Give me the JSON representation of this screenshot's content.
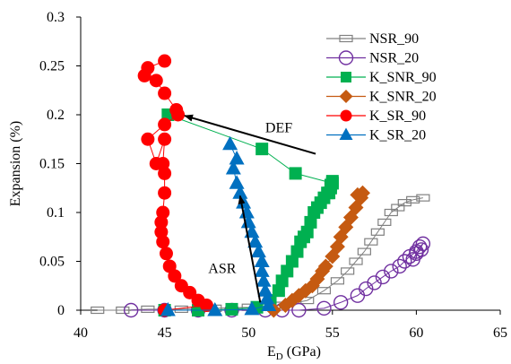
{
  "chart_data": {
    "type": "scatter",
    "xlabel": "E",
    "xlabel_sub": "D",
    "xlabel_unit": " (GPa)",
    "ylabel": "Expansion (%)",
    "xlim": [
      40,
      65
    ],
    "ylim": [
      0,
      0.3
    ],
    "x_ticks": [
      40,
      45,
      50,
      55,
      60,
      65
    ],
    "y_ticks": [
      0,
      0.05,
      0.1,
      0.15,
      0.2,
      0.25,
      0.3
    ],
    "y_tick_labels": [
      "0",
      "0.05",
      "0.1",
      "0.15",
      "0.2",
      "0.25",
      "0.3"
    ],
    "grid": false,
    "legend_position": "top-right",
    "series": [
      {
        "name": "NSR_90",
        "color": "#808080",
        "marker": "rect-open",
        "line": true,
        "x": [
          41.0,
          42.5,
          44.0,
          46.0,
          48.0,
          50.0,
          52.0,
          53.5,
          54.5,
          55.3,
          55.9,
          56.4,
          56.9,
          57.3,
          57.7,
          58.1,
          58.5,
          58.9,
          59.3,
          59.8,
          60.4
        ],
        "y": [
          0.0,
          0.0,
          0.001,
          0.001,
          0.002,
          0.003,
          0.005,
          0.01,
          0.02,
          0.03,
          0.04,
          0.05,
          0.06,
          0.07,
          0.08,
          0.09,
          0.1,
          0.105,
          0.11,
          0.113,
          0.115
        ]
      },
      {
        "name": "NSR_20",
        "color": "#7030A0",
        "marker": "circle-open",
        "line": true,
        "x": [
          43.0,
          45.0,
          47.0,
          49.0,
          51.0,
          52.0,
          53.0,
          54.5,
          55.5,
          56.5,
          57.0,
          57.5,
          58.0,
          58.5,
          59.0,
          59.3,
          59.6,
          60.0,
          60.2,
          60.4,
          59.8,
          60.0,
          60.3
        ],
        "y": [
          0.0,
          0.0,
          0.0,
          0.0,
          0.0,
          0.0,
          0.0,
          0.002,
          0.008,
          0.015,
          0.022,
          0.028,
          0.034,
          0.04,
          0.045,
          0.05,
          0.055,
          0.06,
          0.065,
          0.068,
          0.052,
          0.058,
          0.062
        ]
      },
      {
        "name": "K_SNR_90",
        "color": "#00B050",
        "marker": "square",
        "line": true,
        "x": [
          45.0,
          47.0,
          49.0,
          50.5,
          51.3,
          51.8,
          52.0,
          52.3,
          52.6,
          52.9,
          53.1,
          53.3,
          53.5,
          53.7,
          53.9,
          54.1,
          54.3,
          54.5,
          54.7,
          54.9,
          55.0,
          54.8,
          54.9,
          55.0,
          55.0,
          52.8,
          50.8,
          45.2
        ],
        "y": [
          0.0,
          0.0,
          0.001,
          0.003,
          0.01,
          0.02,
          0.03,
          0.04,
          0.05,
          0.06,
          0.07,
          0.075,
          0.08,
          0.09,
          0.1,
          0.105,
          0.11,
          0.115,
          0.12,
          0.125,
          0.13,
          0.12,
          0.128,
          0.132,
          0.13,
          0.14,
          0.165,
          0.2
        ]
      },
      {
        "name": "K_SNR_20",
        "color": "#C55A11",
        "marker": "diamond",
        "line": true,
        "x": [
          51.5,
          52.2,
          52.6,
          53.0,
          53.4,
          53.8,
          54.1,
          54.4,
          54.6,
          55.0,
          55.3,
          55.5,
          55.8,
          56.1,
          56.4,
          56.7,
          56.5,
          56.8
        ],
        "y": [
          0.0,
          0.005,
          0.01,
          0.015,
          0.02,
          0.025,
          0.032,
          0.04,
          0.045,
          0.055,
          0.065,
          0.075,
          0.085,
          0.095,
          0.105,
          0.115,
          0.118,
          0.12
        ]
      },
      {
        "name": "K_SR_90",
        "color": "#FF0000",
        "marker": "circle",
        "line": true,
        "x": [
          45.0,
          47.5,
          47.0,
          46.5,
          46.0,
          45.6,
          45.3,
          45.1,
          44.9,
          44.8,
          44.8,
          44.9,
          45.0,
          45.0,
          44.9,
          45.0,
          44.5,
          44.0,
          45.0,
          45.8,
          45.7,
          45.0,
          44.5,
          43.8,
          44.0,
          45.0
        ],
        "y": [
          0.0,
          0.005,
          0.01,
          0.018,
          0.025,
          0.035,
          0.045,
          0.058,
          0.07,
          0.08,
          0.09,
          0.1,
          0.12,
          0.14,
          0.15,
          0.175,
          0.15,
          0.175,
          0.19,
          0.2,
          0.205,
          0.222,
          0.235,
          0.24,
          0.248,
          0.255
        ]
      },
      {
        "name": "K_SR_20",
        "color": "#0070C0",
        "marker": "triangle",
        "line": true,
        "x": [
          45.2,
          48.0,
          50.2,
          51.2,
          51.1,
          51.0,
          50.9,
          50.8,
          50.8,
          50.6,
          50.4,
          50.2,
          50.0,
          49.9,
          49.7,
          49.5,
          49.3,
          49.1,
          49.3,
          48.9
        ],
        "y": [
          0.0,
          0.0,
          0.001,
          0.005,
          0.012,
          0.02,
          0.03,
          0.04,
          0.05,
          0.06,
          0.07,
          0.08,
          0.09,
          0.1,
          0.11,
          0.12,
          0.13,
          0.145,
          0.155,
          0.17
        ]
      }
    ],
    "annotations": [
      {
        "text": "DEF",
        "x": 51.0,
        "y": 0.182
      },
      {
        "text": "ASR",
        "x": 47.6,
        "y": 0.038
      }
    ],
    "arrows": [
      {
        "from": [
          54.0,
          0.16
        ],
        "to": [
          46.2,
          0.199
        ]
      },
      {
        "from": [
          50.7,
          0.008
        ],
        "to": [
          49.5,
          0.117
        ]
      }
    ]
  }
}
